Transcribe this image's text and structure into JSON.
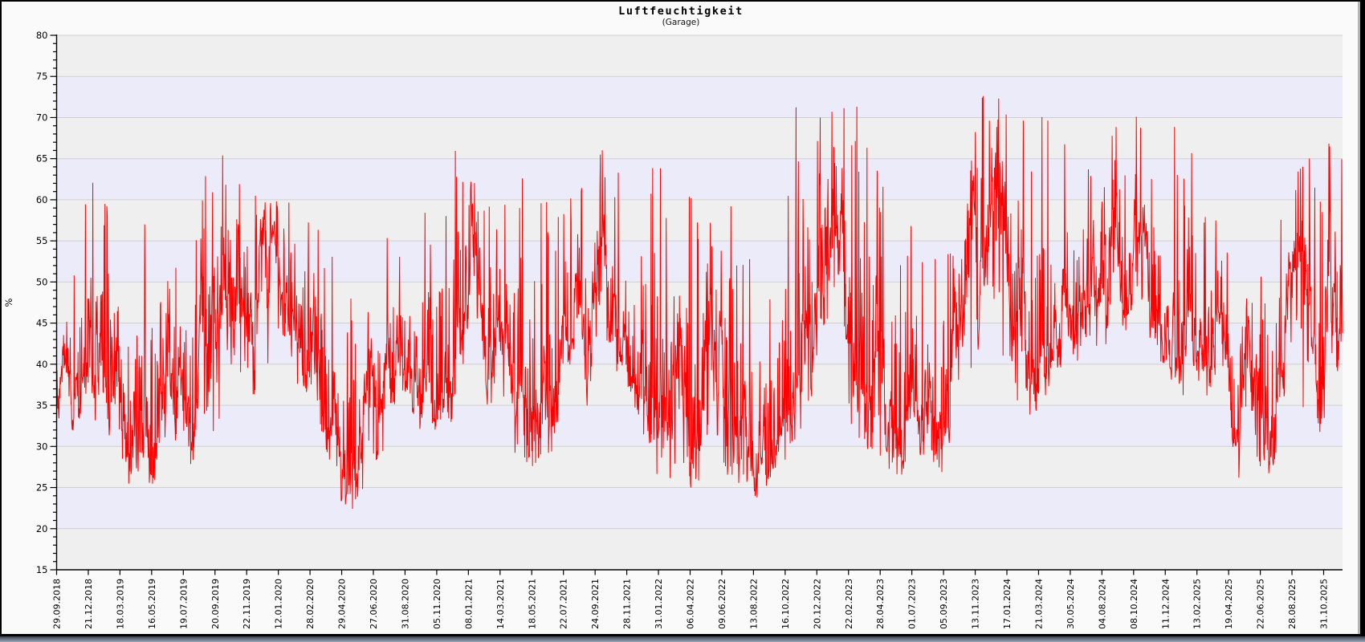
{
  "header": {
    "title": "Luftfeuchtigkeit",
    "subtitle": "(Garage)"
  },
  "window": {
    "background": "#fafafa",
    "border_color": "#000000",
    "right_shadow_color": "#b4b4b4",
    "bottom_strip_gradient": [
      "#39414f",
      "#9aa5b8"
    ]
  },
  "chart_data": {
    "type": "line",
    "title": "Luftfeuchtigkeit",
    "subtitle": "(Garage)",
    "ylabel": "%",
    "xlabel": "",
    "ylim": [
      15,
      80
    ],
    "y_tick_step": 5,
    "y_minor_tick_step": 1,
    "y_tick_labels": [
      "80",
      "75",
      "70",
      "65",
      "60",
      "55",
      "50",
      "45",
      "40",
      "35",
      "30",
      "25",
      "20",
      "15"
    ],
    "grid": "horizontal-only",
    "legend_position": "none",
    "series_color": "#ff0000",
    "band_colors": [
      "#efefef",
      "#ebebfa"
    ],
    "grid_color": "#cfcfcf",
    "axis_color": "#000000",
    "tick_label_color": "#000000",
    "x_tick_labels": [
      "29.09.2018",
      "21.12.2018",
      "18.03.2019",
      "16.05.2019",
      "19.07.2019",
      "20.09.2019",
      "22.11.2019",
      "12.01.2020",
      "28.02.2020",
      "29.04.2020",
      "27.06.2020",
      "31.08.2020",
      "05.11.2020",
      "08.01.2021",
      "14.03.2021",
      "18.05.2021",
      "22.07.2021",
      "24.09.2021",
      "28.11.2021",
      "31.01.2022",
      "06.04.2022",
      "09.06.2022",
      "13.08.2022",
      "16.10.2022",
      "20.12.2022",
      "22.02.2023",
      "28.04.2023",
      "01.07.2023",
      "05.09.2023",
      "13.11.2023",
      "17.01.2024",
      "21.03.2024",
      "30.05.2024",
      "04.08.2024",
      "08.10.2024",
      "11.12.2024",
      "13.02.2025",
      "19.04.2025",
      "22.06.2025",
      "28.08.2025",
      "31.10.2025"
    ],
    "observed_extremes": {
      "min_value": 19.5,
      "min_near": "04.2020",
      "max_value": 76.0,
      "max_near": "11.2023"
    },
    "series": [
      {
        "name": "Luftfeuchtigkeit (Garage)",
        "unit": "%",
        "style": "dense-noisy-line",
        "envelope_by_tick": [
          {
            "date": "29.09.2018",
            "lo": 29.0,
            "hi": 44.0
          },
          {
            "date": "21.12.2018",
            "lo": 33.0,
            "hi": 63.0
          },
          {
            "date": "18.03.2019",
            "lo": 24.0,
            "hi": 57.0
          },
          {
            "date": "16.05.2019",
            "lo": 23.5,
            "hi": 62.5
          },
          {
            "date": "19.07.2019",
            "lo": 25.0,
            "hi": 57.0
          },
          {
            "date": "20.09.2019",
            "lo": 26.0,
            "hi": 67.0
          },
          {
            "date": "22.11.2019",
            "lo": 33.0,
            "hi": 63.5
          },
          {
            "date": "12.01.2020",
            "lo": 36.0,
            "hi": 66.0
          },
          {
            "date": "28.02.2020",
            "lo": 34.0,
            "hi": 66.0
          },
          {
            "date": "29.04.2020",
            "lo": 19.5,
            "hi": 46.0
          },
          {
            "date": "27.06.2020",
            "lo": 26.0,
            "hi": 59.0
          },
          {
            "date": "31.08.2020",
            "lo": 30.0,
            "hi": 53.5
          },
          {
            "date": "05.11.2020",
            "lo": 31.0,
            "hi": 65.5
          },
          {
            "date": "08.01.2021",
            "lo": 35.0,
            "hi": 69.3
          },
          {
            "date": "14.03.2021",
            "lo": 28.0,
            "hi": 59.0
          },
          {
            "date": "18.05.2021",
            "lo": 23.5,
            "hi": 66.5
          },
          {
            "date": "22.07.2021",
            "lo": 33.0,
            "hi": 61.0
          },
          {
            "date": "24.09.2021",
            "lo": 34.0,
            "hi": 68.0
          },
          {
            "date": "28.11.2021",
            "lo": 33.0,
            "hi": 61.0
          },
          {
            "date": "31.01.2022",
            "lo": 21.5,
            "hi": 68.0
          },
          {
            "date": "06.04.2022",
            "lo": 25.0,
            "hi": 59.5
          },
          {
            "date": "09.06.2022",
            "lo": 23.0,
            "hi": 59.5
          },
          {
            "date": "13.08.2022",
            "lo": 22.5,
            "hi": 50.0
          },
          {
            "date": "16.10.2022",
            "lo": 30.0,
            "hi": 73.8
          },
          {
            "date": "20.12.2022",
            "lo": 33.0,
            "hi": 72.5
          },
          {
            "date": "22.02.2023",
            "lo": 28.0,
            "hi": 71.3
          },
          {
            "date": "28.04.2023",
            "lo": 25.0,
            "hi": 66.0
          },
          {
            "date": "01.07.2023",
            "lo": 23.6,
            "hi": 55.0
          },
          {
            "date": "05.09.2023",
            "lo": 28.0,
            "hi": 65.0
          },
          {
            "date": "13.11.2023",
            "lo": 40.0,
            "hi": 76.1
          },
          {
            "date": "17.01.2024",
            "lo": 29.0,
            "hi": 75.7
          },
          {
            "date": "21.03.2024",
            "lo": 37.0,
            "hi": 69.0
          },
          {
            "date": "30.05.2024",
            "lo": 40.0,
            "hi": 67.0
          },
          {
            "date": "04.08.2024",
            "lo": 40.0,
            "hi": 73.3
          },
          {
            "date": "08.10.2024",
            "lo": 40.0,
            "hi": 68.0
          },
          {
            "date": "11.12.2024",
            "lo": 35.0,
            "hi": 69.5
          },
          {
            "date": "13.02.2025",
            "lo": 33.0,
            "hi": 58.0
          },
          {
            "date": "19.04.2025",
            "lo": 22.6,
            "hi": 55.0
          },
          {
            "date": "22.06.2025",
            "lo": 26.0,
            "hi": 58.0
          },
          {
            "date": "28.08.2025",
            "lo": 28.0,
            "hi": 67.9
          },
          {
            "date": "31.10.2025",
            "lo": 33.0,
            "hi": 69.5
          }
        ]
      }
    ]
  }
}
